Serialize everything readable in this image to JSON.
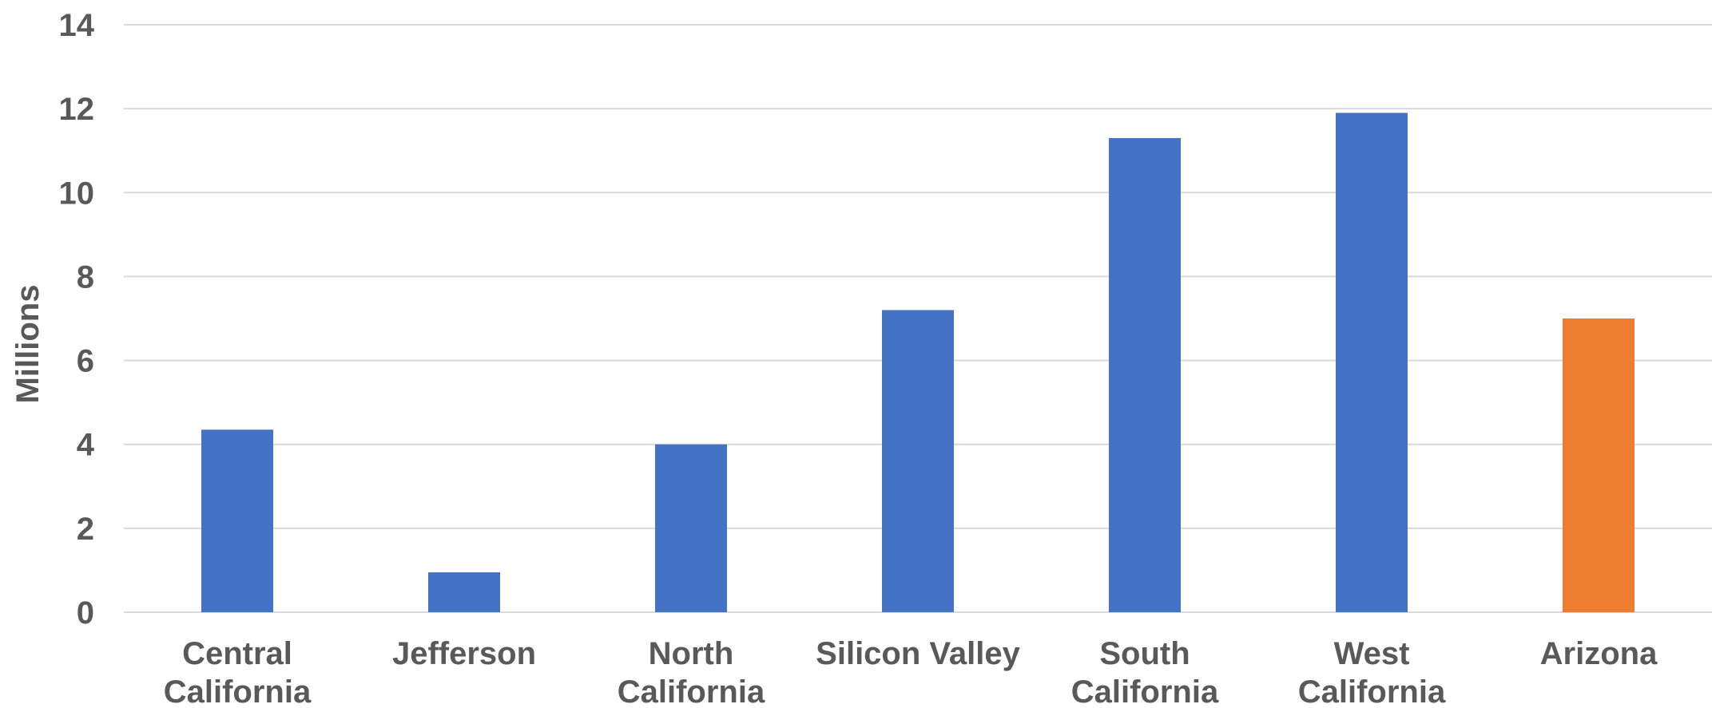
{
  "chart_data": {
    "type": "bar",
    "categories": [
      [
        "Central",
        "California"
      ],
      [
        "Jefferson"
      ],
      [
        "North",
        "California"
      ],
      [
        "Silicon Valley"
      ],
      [
        "South",
        "California"
      ],
      [
        "West",
        "California"
      ],
      [
        "Arizona"
      ]
    ],
    "values": [
      4.35,
      0.95,
      4.0,
      7.2,
      11.3,
      11.9,
      7.0
    ],
    "colors": [
      "#4472C4",
      "#4472C4",
      "#4472C4",
      "#4472C4",
      "#4472C4",
      "#4472C4",
      "#ED7D31"
    ],
    "title": "",
    "xlabel": "",
    "ylabel": "Millions",
    "ylim": [
      0,
      14
    ],
    "yticks": [
      0,
      2,
      4,
      6,
      8,
      10,
      12,
      14
    ],
    "grid": true,
    "legend": "none"
  }
}
